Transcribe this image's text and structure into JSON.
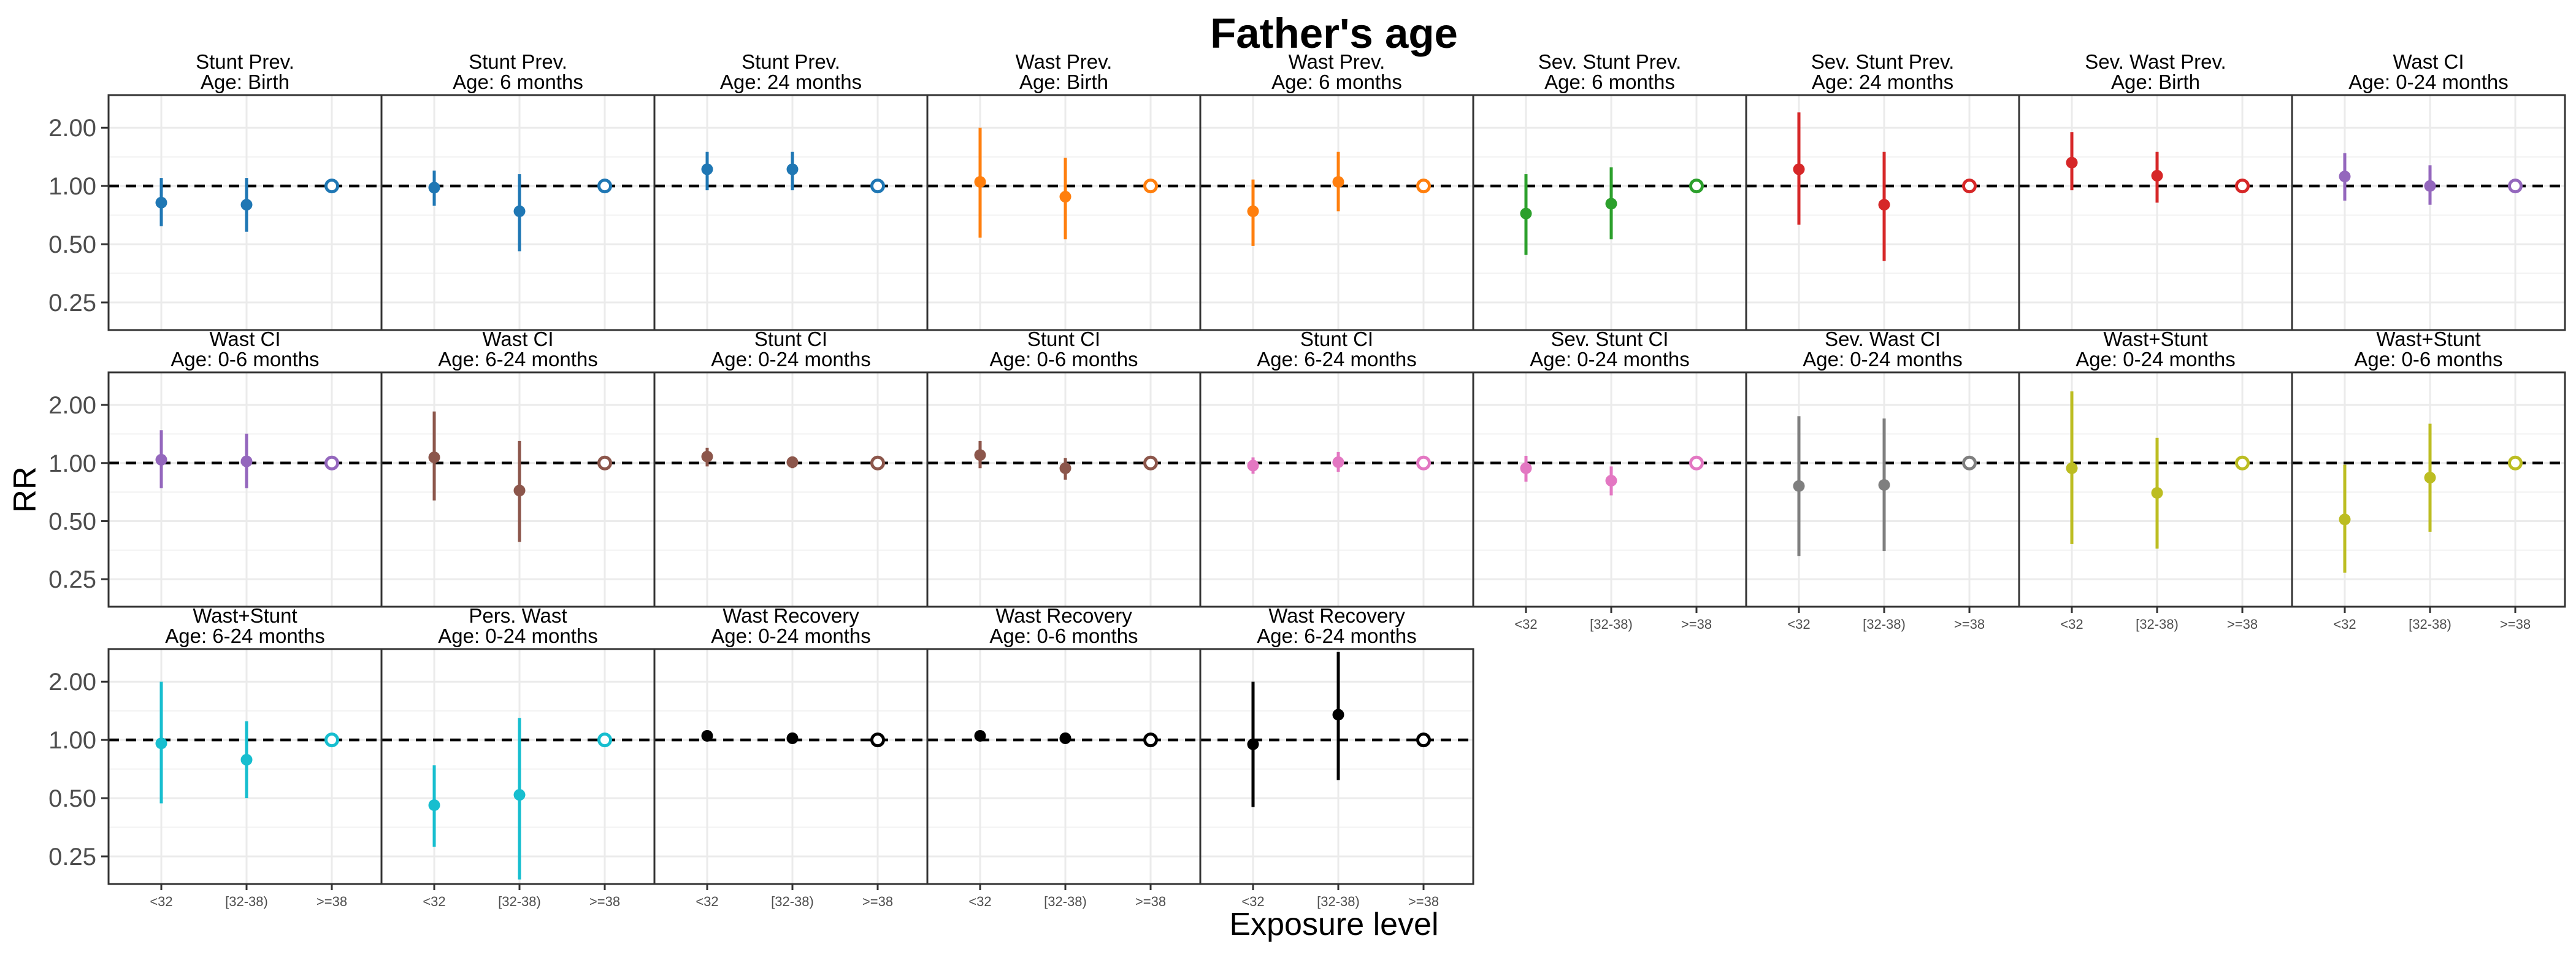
{
  "chart_data": {
    "type": "scatter",
    "title": "Father's age",
    "ylabel": "RR",
    "xlabel": "Exposure level",
    "y_scale": "log",
    "y_ticks": [
      0.25,
      0.5,
      1.0,
      2.0
    ],
    "y_tick_labels": [
      "0.25",
      "0.50",
      "1.00",
      "2.00"
    ],
    "ylim": [
      0.18,
      2.95
    ],
    "reference_line": 1.0,
    "categories": [
      "<32",
      "[32-38)",
      ">=38"
    ],
    "grid": true,
    "panels": [
      {
        "line1": "Stunt Prev.",
        "line2": "Age: Birth",
        "color": "#1f77b4",
        "points": [
          {
            "x": "<32",
            "y": 0.82,
            "lo": 0.62,
            "hi": 1.1
          },
          {
            "x": "[32-38)",
            "y": 0.8,
            "lo": 0.58,
            "hi": 1.1
          },
          {
            "x": ">=38",
            "y": 1.0,
            "ref": true
          }
        ]
      },
      {
        "line1": "Stunt Prev.",
        "line2": "Age: 6 months",
        "color": "#1f77b4",
        "points": [
          {
            "x": "<32",
            "y": 0.98,
            "lo": 0.79,
            "hi": 1.2
          },
          {
            "x": "[32-38)",
            "y": 0.74,
            "lo": 0.46,
            "hi": 1.15
          },
          {
            "x": ">=38",
            "y": 1.0,
            "ref": true
          }
        ]
      },
      {
        "line1": "Stunt Prev.",
        "line2": "Age: 24 months",
        "color": "#1f77b4",
        "points": [
          {
            "x": "<32",
            "y": 1.22,
            "lo": 0.95,
            "hi": 1.5
          },
          {
            "x": "[32-38)",
            "y": 1.22,
            "lo": 0.95,
            "hi": 1.5
          },
          {
            "x": ">=38",
            "y": 1.0,
            "ref": true
          }
        ]
      },
      {
        "line1": "Wast Prev.",
        "line2": "Age: Birth",
        "color": "#ff7f0e",
        "points": [
          {
            "x": "<32",
            "y": 1.05,
            "lo": 0.54,
            "hi": 2.0
          },
          {
            "x": "[32-38)",
            "y": 0.88,
            "lo": 0.53,
            "hi": 1.4
          },
          {
            "x": ">=38",
            "y": 1.0,
            "ref": true
          }
        ]
      },
      {
        "line1": "Wast Prev.",
        "line2": "Age: 6 months",
        "color": "#ff7f0e",
        "points": [
          {
            "x": "<32",
            "y": 0.74,
            "lo": 0.49,
            "hi": 1.08
          },
          {
            "x": "[32-38)",
            "y": 1.05,
            "lo": 0.74,
            "hi": 1.5
          },
          {
            "x": ">=38",
            "y": 1.0,
            "ref": true
          }
        ]
      },
      {
        "line1": "Sev. Stunt Prev.",
        "line2": "Age: 6 months",
        "color": "#2ca02c",
        "points": [
          {
            "x": "<32",
            "y": 0.72,
            "lo": 0.44,
            "hi": 1.15
          },
          {
            "x": "[32-38)",
            "y": 0.81,
            "lo": 0.53,
            "hi": 1.25
          },
          {
            "x": ">=38",
            "y": 1.0,
            "ref": true
          }
        ]
      },
      {
        "line1": "Sev. Stunt Prev.",
        "line2": "Age: 24 months",
        "color": "#d62728",
        "points": [
          {
            "x": "<32",
            "y": 1.22,
            "lo": 0.63,
            "hi": 2.4
          },
          {
            "x": "[32-38)",
            "y": 0.8,
            "lo": 0.41,
            "hi": 1.5
          },
          {
            "x": ">=38",
            "y": 1.0,
            "ref": true
          }
        ]
      },
      {
        "line1": "Sev. Wast Prev.",
        "line2": "Age: Birth",
        "color": "#d62728",
        "points": [
          {
            "x": "<32",
            "y": 1.32,
            "lo": 0.95,
            "hi": 1.9
          },
          {
            "x": "[32-38)",
            "y": 1.13,
            "lo": 0.82,
            "hi": 1.5
          },
          {
            "x": ">=38",
            "y": 1.0,
            "ref": true
          }
        ]
      },
      {
        "line1": "Wast CI",
        "line2": "Age: 0-24 months",
        "color": "#9467bd",
        "points": [
          {
            "x": "<32",
            "y": 1.12,
            "lo": 0.84,
            "hi": 1.48
          },
          {
            "x": "[32-38)",
            "y": 1.0,
            "lo": 0.8,
            "hi": 1.28
          },
          {
            "x": ">=38",
            "y": 1.0,
            "ref": true
          }
        ]
      },
      {
        "line1": "Wast CI",
        "line2": "Age: 0-6 months",
        "color": "#9467bd",
        "points": [
          {
            "x": "<32",
            "y": 1.04,
            "lo": 0.74,
            "hi": 1.48
          },
          {
            "x": "[32-38)",
            "y": 1.02,
            "lo": 0.74,
            "hi": 1.42
          },
          {
            "x": ">=38",
            "y": 1.0,
            "ref": true
          }
        ]
      },
      {
        "line1": "Wast CI",
        "line2": "Age: 6-24 months",
        "color": "#8c564b",
        "points": [
          {
            "x": "<32",
            "y": 1.07,
            "lo": 0.64,
            "hi": 1.85
          },
          {
            "x": "[32-38)",
            "y": 0.72,
            "lo": 0.39,
            "hi": 1.3
          },
          {
            "x": ">=38",
            "y": 1.0,
            "ref": true
          }
        ]
      },
      {
        "line1": "Stunt CI",
        "line2": "Age: 0-24 months",
        "color": "#8c564b",
        "points": [
          {
            "x": "<32",
            "y": 1.08,
            "lo": 0.96,
            "hi": 1.2
          },
          {
            "x": "[32-38)",
            "y": 1.01,
            "lo": 0.94,
            "hi": 1.08
          },
          {
            "x": ">=38",
            "y": 1.0,
            "ref": true
          }
        ]
      },
      {
        "line1": "Stunt CI",
        "line2": "Age: 0-6 months",
        "color": "#8c564b",
        "points": [
          {
            "x": "<32",
            "y": 1.1,
            "lo": 0.94,
            "hi": 1.3
          },
          {
            "x": "[32-38)",
            "y": 0.94,
            "lo": 0.82,
            "hi": 1.06
          },
          {
            "x": ">=38",
            "y": 1.0,
            "ref": true
          }
        ]
      },
      {
        "line1": "Stunt CI",
        "line2": "Age: 6-24 months",
        "color": "#e377c2",
        "points": [
          {
            "x": "<32",
            "y": 0.97,
            "lo": 0.88,
            "hi": 1.07
          },
          {
            "x": "[32-38)",
            "y": 1.01,
            "lo": 0.9,
            "hi": 1.14
          },
          {
            "x": ">=38",
            "y": 1.0,
            "ref": true
          }
        ]
      },
      {
        "line1": "Sev. Stunt CI",
        "line2": "Age: 0-24 months",
        "color": "#e377c2",
        "points": [
          {
            "x": "<32",
            "y": 0.94,
            "lo": 0.8,
            "hi": 1.09
          },
          {
            "x": "[32-38)",
            "y": 0.81,
            "lo": 0.68,
            "hi": 0.96
          },
          {
            "x": ">=38",
            "y": 1.0,
            "ref": true
          }
        ]
      },
      {
        "line1": "Sev. Wast CI",
        "line2": "Age: 0-24 months",
        "color": "#7f7f7f",
        "points": [
          {
            "x": "<32",
            "y": 0.76,
            "lo": 0.33,
            "hi": 1.75
          },
          {
            "x": "[32-38)",
            "y": 0.77,
            "lo": 0.35,
            "hi": 1.7
          },
          {
            "x": ">=38",
            "y": 1.0,
            "ref": true
          }
        ]
      },
      {
        "line1": "Wast+Stunt",
        "line2": "Age: 0-24 months",
        "color": "#bcbd22",
        "points": [
          {
            "x": "<32",
            "y": 0.94,
            "lo": 0.38,
            "hi": 2.35
          },
          {
            "x": "[32-38)",
            "y": 0.7,
            "lo": 0.36,
            "hi": 1.35
          },
          {
            "x": ">=38",
            "y": 1.0,
            "ref": true
          }
        ]
      },
      {
        "line1": "Wast+Stunt",
        "line2": "Age: 0-6 months",
        "color": "#bcbd22",
        "points": [
          {
            "x": "<32",
            "y": 0.51,
            "lo": 0.27,
            "hi": 0.98
          },
          {
            "x": "[32-38)",
            "y": 0.84,
            "lo": 0.44,
            "hi": 1.6
          },
          {
            "x": ">=38",
            "y": 1.0,
            "ref": true
          }
        ]
      },
      {
        "line1": "Wast+Stunt",
        "line2": "Age: 6-24 months",
        "color": "#17becf",
        "points": [
          {
            "x": "<32",
            "y": 0.96,
            "lo": 0.47,
            "hi": 2.0
          },
          {
            "x": "[32-38)",
            "y": 0.79,
            "lo": 0.5,
            "hi": 1.25
          },
          {
            "x": ">=38",
            "y": 1.0,
            "ref": true
          }
        ]
      },
      {
        "line1": "Pers. Wast",
        "line2": "Age: 0-24 months",
        "color": "#17becf",
        "points": [
          {
            "x": "<32",
            "y": 0.46,
            "lo": 0.28,
            "hi": 0.74
          },
          {
            "x": "[32-38)",
            "y": 0.52,
            "lo": 0.19,
            "hi": 1.3
          },
          {
            "x": ">=38",
            "y": 1.0,
            "ref": true
          }
        ]
      },
      {
        "line1": "Wast Recovery",
        "line2": "Age: 0-24 months",
        "color": "#000000",
        "points": [
          {
            "x": "<32",
            "y": 1.05,
            "lo": 1.02,
            "hi": 1.08
          },
          {
            "x": "[32-38)",
            "y": 1.02,
            "lo": 1.0,
            "hi": 1.04
          },
          {
            "x": ">=38",
            "y": 1.0,
            "ref": true
          }
        ]
      },
      {
        "line1": "Wast Recovery",
        "line2": "Age: 0-6 months",
        "color": "#000000",
        "points": [
          {
            "x": "<32",
            "y": 1.05,
            "lo": 1.02,
            "hi": 1.08
          },
          {
            "x": "[32-38)",
            "y": 1.02,
            "lo": 1.0,
            "hi": 1.04
          },
          {
            "x": ">=38",
            "y": 1.0,
            "ref": true
          }
        ]
      },
      {
        "line1": "Wast Recovery",
        "line2": "Age: 6-24 months",
        "color": "#000000",
        "points": [
          {
            "x": "<32",
            "y": 0.95,
            "lo": 0.45,
            "hi": 2.0
          },
          {
            "x": "[32-38)",
            "y": 1.35,
            "lo": 0.62,
            "hi": 2.85
          },
          {
            "x": ">=38",
            "y": 1.0,
            "ref": true
          }
        ]
      }
    ]
  }
}
